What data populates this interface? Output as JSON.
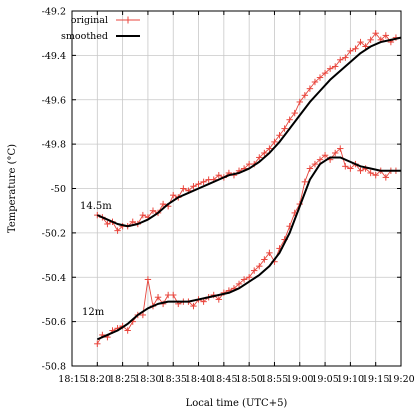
{
  "chart_data": {
    "type": "line",
    "xlabel": "Local time (UTC+5)",
    "ylabel": "Temperature (°C)",
    "x_ticks": [
      "18:15",
      "18:20",
      "18:25",
      "18:30",
      "18:35",
      "18:40",
      "18:45",
      "18:50",
      "18:55",
      "19:00",
      "19:05",
      "19:10",
      "19:15",
      "19:20"
    ],
    "y_ticks": [
      "-49.2",
      "-49.4",
      "-49.6",
      "-49.8",
      "-50",
      "-50.2",
      "-50.4",
      "-50.6",
      "-50.8"
    ],
    "xlim": [
      "18:15",
      "19:20"
    ],
    "ylim": [
      -50.8,
      -49.2
    ],
    "grid": true,
    "legend_position": "top-left",
    "series_colors": {
      "original": "#e8453c",
      "smoothed": "#000000"
    },
    "legend": [
      {
        "label": "original",
        "style": "red line with plus markers"
      },
      {
        "label": "smoothed",
        "style": "black line"
      }
    ],
    "annotations": [
      {
        "text": "14.5m",
        "near_series": "upper"
      },
      {
        "text": "12m",
        "near_series": "lower"
      }
    ],
    "series": [
      {
        "group": "14.5m",
        "kind": "original",
        "x": [
          "18:20",
          "18:21",
          "18:22",
          "18:23",
          "18:24",
          "18:25",
          "18:26",
          "18:27",
          "18:28",
          "18:29",
          "18:30",
          "18:31",
          "18:32",
          "18:33",
          "18:34",
          "18:35",
          "18:36",
          "18:37",
          "18:38",
          "18:39",
          "18:40",
          "18:41",
          "18:42",
          "18:43",
          "18:44",
          "18:45",
          "18:46",
          "18:47",
          "18:48",
          "18:49",
          "18:50",
          "18:51",
          "18:52",
          "18:53",
          "18:54",
          "18:55",
          "18:56",
          "18:57",
          "18:58",
          "18:59",
          "19:00",
          "19:01",
          "19:02",
          "19:03",
          "19:04",
          "19:05",
          "19:06",
          "19:07",
          "19:08",
          "19:09",
          "19:10",
          "19:11",
          "19:12",
          "19:13",
          "19:14",
          "19:15",
          "19:16",
          "19:17",
          "19:18",
          "19:19"
        ],
        "values": [
          -50.12,
          -50.13,
          -50.16,
          -50.15,
          -50.19,
          -50.17,
          -50.17,
          -50.15,
          -50.16,
          -50.12,
          -50.13,
          -50.1,
          -50.11,
          -50.07,
          -50.08,
          -50.03,
          -50.04,
          -50.0,
          -50.01,
          -49.99,
          -49.98,
          -49.97,
          -49.96,
          -49.96,
          -49.94,
          -49.95,
          -49.93,
          -49.94,
          -49.92,
          -49.91,
          -49.89,
          -49.89,
          -49.86,
          -49.84,
          -49.82,
          -49.79,
          -49.76,
          -49.73,
          -49.69,
          -49.66,
          -49.61,
          -49.58,
          -49.55,
          -49.52,
          -49.5,
          -49.48,
          -49.46,
          -49.45,
          -49.42,
          -49.41,
          -49.38,
          -49.37,
          -49.34,
          -49.36,
          -49.33,
          -49.3,
          -49.33,
          -49.31,
          -49.34,
          -49.32
        ]
      },
      {
        "group": "14.5m",
        "kind": "smoothed",
        "x": [
          "18:20",
          "18:22",
          "18:24",
          "18:26",
          "18:28",
          "18:30",
          "18:32",
          "18:34",
          "18:36",
          "18:38",
          "18:40",
          "18:42",
          "18:44",
          "18:46",
          "18:48",
          "18:50",
          "18:52",
          "18:54",
          "18:56",
          "18:58",
          "19:00",
          "19:02",
          "19:04",
          "19:06",
          "19:08",
          "19:10",
          "19:12",
          "19:14",
          "19:16",
          "19:18",
          "19:20"
        ],
        "values": [
          -50.12,
          -50.14,
          -50.16,
          -50.17,
          -50.16,
          -50.14,
          -50.11,
          -50.07,
          -50.04,
          -50.02,
          -50.0,
          -49.98,
          -49.96,
          -49.94,
          -49.93,
          -49.91,
          -49.88,
          -49.84,
          -49.79,
          -49.73,
          -49.67,
          -49.61,
          -49.56,
          -49.51,
          -49.47,
          -49.43,
          -49.39,
          -49.36,
          -49.34,
          -49.33,
          -49.32
        ]
      },
      {
        "group": "12m",
        "kind": "original",
        "x": [
          "18:20",
          "18:21",
          "18:22",
          "18:23",
          "18:24",
          "18:25",
          "18:26",
          "18:27",
          "18:28",
          "18:29",
          "18:30",
          "18:31",
          "18:32",
          "18:33",
          "18:34",
          "18:35",
          "18:36",
          "18:37",
          "18:38",
          "18:39",
          "18:40",
          "18:41",
          "18:42",
          "18:43",
          "18:44",
          "18:45",
          "18:46",
          "18:47",
          "18:48",
          "18:49",
          "18:50",
          "18:51",
          "18:52",
          "18:53",
          "18:54",
          "18:55",
          "18:56",
          "18:57",
          "18:58",
          "18:59",
          "19:00",
          "19:01",
          "19:02",
          "19:03",
          "19:04",
          "19:05",
          "19:06",
          "19:07",
          "19:08",
          "19:09",
          "19:10",
          "19:11",
          "19:12",
          "19:13",
          "19:14",
          "19:15",
          "19:16",
          "19:17",
          "19:18",
          "19:19"
        ],
        "values": [
          -50.7,
          -50.66,
          -50.67,
          -50.64,
          -50.63,
          -50.62,
          -50.64,
          -50.6,
          -50.57,
          -50.57,
          -50.41,
          -50.53,
          -50.49,
          -50.52,
          -50.48,
          -50.48,
          -50.52,
          -50.51,
          -50.51,
          -50.53,
          -50.5,
          -50.51,
          -50.49,
          -50.48,
          -50.5,
          -50.47,
          -50.46,
          -50.45,
          -50.43,
          -50.41,
          -50.4,
          -50.37,
          -50.35,
          -50.32,
          -50.29,
          -50.33,
          -50.27,
          -50.23,
          -50.17,
          -50.11,
          -50.07,
          -49.97,
          -49.91,
          -49.89,
          -49.87,
          -49.85,
          -49.87,
          -49.84,
          -49.82,
          -49.9,
          -49.91,
          -49.89,
          -49.92,
          -49.91,
          -49.93,
          -49.94,
          -49.92,
          -49.95,
          -49.92,
          -49.92
        ]
      },
      {
        "group": "12m",
        "kind": "smoothed",
        "x": [
          "18:20",
          "18:22",
          "18:24",
          "18:26",
          "18:28",
          "18:30",
          "18:32",
          "18:34",
          "18:36",
          "18:38",
          "18:40",
          "18:42",
          "18:44",
          "18:46",
          "18:48",
          "18:50",
          "18:52",
          "18:54",
          "18:56",
          "18:58",
          "19:00",
          "19:02",
          "19:04",
          "19:06",
          "19:08",
          "19:10",
          "19:12",
          "19:14",
          "19:16",
          "19:18",
          "19:20"
        ],
        "values": [
          -50.68,
          -50.66,
          -50.64,
          -50.61,
          -50.57,
          -50.54,
          -50.52,
          -50.51,
          -50.51,
          -50.51,
          -50.5,
          -50.49,
          -50.48,
          -50.47,
          -50.45,
          -50.42,
          -50.39,
          -50.35,
          -50.29,
          -50.2,
          -50.08,
          -49.96,
          -49.89,
          -49.86,
          -49.86,
          -49.88,
          -49.9,
          -49.91,
          -49.92,
          -49.92,
          -49.92
        ]
      }
    ]
  }
}
